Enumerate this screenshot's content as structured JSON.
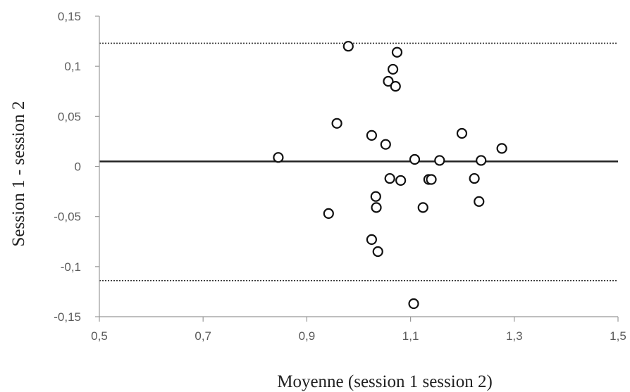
{
  "chart_data": {
    "type": "scatter",
    "title": "",
    "xlabel": "Moyenne (session 1 session 2)",
    "ylabel": "Session 1 - session 2",
    "xlim": [
      0.5,
      1.5
    ],
    "ylim": [
      -0.15,
      0.15
    ],
    "x_ticks": [
      0.5,
      0.7,
      0.9,
      1.1,
      1.3,
      1.5
    ],
    "x_tick_labels": [
      "0,5",
      "0,7",
      "0,9",
      "1,1",
      "1,3",
      "1,5"
    ],
    "y_ticks": [
      0.15,
      0.1,
      0.05,
      0,
      -0.05,
      -0.1,
      -0.15
    ],
    "y_tick_labels": [
      "0,15",
      "0,1",
      "0,05",
      "0",
      "-0,05",
      "-0,1",
      "-0,15"
    ],
    "grid": false,
    "reference_lines": [
      {
        "kind": "mean",
        "y": 0.005,
        "style": "solid"
      },
      {
        "kind": "upper-limit",
        "y": 0.123,
        "style": "dotted"
      },
      {
        "kind": "lower-limit",
        "y": -0.114,
        "style": "dotted"
      }
    ],
    "series": [
      {
        "points": [
          {
            "x": 0.845,
            "y": 0.009
          },
          {
            "x": 0.942,
            "y": -0.047
          },
          {
            "x": 0.958,
            "y": 0.043
          },
          {
            "x": 0.98,
            "y": 0.12
          },
          {
            "x": 1.025,
            "y": 0.031
          },
          {
            "x": 1.025,
            "y": -0.073
          },
          {
            "x": 1.033,
            "y": -0.03
          },
          {
            "x": 1.034,
            "y": -0.041
          },
          {
            "x": 1.037,
            "y": -0.085
          },
          {
            "x": 1.052,
            "y": 0.022
          },
          {
            "x": 1.057,
            "y": 0.085
          },
          {
            "x": 1.06,
            "y": -0.012
          },
          {
            "x": 1.066,
            "y": 0.097
          },
          {
            "x": 1.071,
            "y": 0.08
          },
          {
            "x": 1.074,
            "y": 0.114
          },
          {
            "x": 1.081,
            "y": -0.014
          },
          {
            "x": 1.106,
            "y": -0.137
          },
          {
            "x": 1.108,
            "y": 0.007
          },
          {
            "x": 1.124,
            "y": -0.041
          },
          {
            "x": 1.135,
            "y": -0.013
          },
          {
            "x": 1.14,
            "y": -0.013
          },
          {
            "x": 1.156,
            "y": 0.006
          },
          {
            "x": 1.199,
            "y": 0.033
          },
          {
            "x": 1.223,
            "y": -0.012
          },
          {
            "x": 1.232,
            "y": -0.035
          },
          {
            "x": 1.236,
            "y": 0.006
          },
          {
            "x": 1.276,
            "y": 0.018
          }
        ]
      }
    ]
  }
}
